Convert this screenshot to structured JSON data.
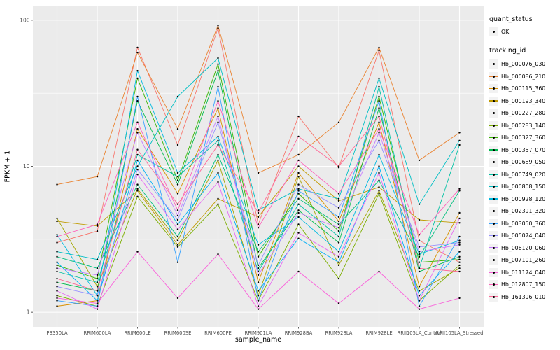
{
  "figure": {
    "background": "#FFFFFF"
  },
  "chart_data": {
    "type": "line",
    "title": "",
    "xlabel": "sample_name",
    "ylabel": "FPKM + 1",
    "y_scale": "log10",
    "ylim": [
      1,
      100
    ],
    "y_ticks": [
      1,
      10,
      100
    ],
    "y_minor_ticks": [
      3.1623,
      31.623
    ],
    "panel_bg": "#EBEBEB",
    "grid_color": "#FFFFFF",
    "point_color": "#000000",
    "key_bg": "#F2F2F2",
    "axis_text_color": "#4D4D4D",
    "legend": {
      "quant_status_title": "quant_status",
      "quant_status_items": [
        {
          "label": "OK",
          "symbol": "point",
          "color": "#000000"
        }
      ],
      "tracking_title": "tracking_id",
      "position": "right"
    },
    "categories": [
      "PB350LA",
      "RRIM600LA",
      "RRIM600LE",
      "RRIM600SE",
      "RRIM600PE",
      "RRIM901LA",
      "RRIM928BA",
      "RRIM928LA",
      "RRIM928LE",
      "RRII105LA_Control",
      "RRII105LA_Stressed"
    ],
    "series": [
      {
        "name": "Hb_000076_030",
        "color": "#F8766D",
        "values": [
          3.0,
          3.6,
          65,
          14,
          88,
          4.0,
          22,
          9.8,
          62,
          3.1,
          2.2
        ]
      },
      {
        "name": "Hb_000086_210",
        "color": "#EA8331",
        "values": [
          7.5,
          8.5,
          60,
          18,
          92,
          9.0,
          12,
          20,
          65,
          11,
          17
        ]
      },
      {
        "name": "Hb_000115_360",
        "color": "#D89000",
        "values": [
          1.1,
          1.2,
          18,
          6.5,
          25,
          1.6,
          9.0,
          4.2,
          20,
          1.5,
          4.8
        ]
      },
      {
        "name": "Hb_000193_340",
        "color": "#C09B00",
        "values": [
          4.2,
          3.9,
          6.8,
          2.9,
          6.0,
          4.5,
          10,
          5.8,
          7.2,
          4.3,
          4.1
        ]
      },
      {
        "name": "Hb_000227_280",
        "color": "#A3A500",
        "values": [
          4.4,
          1.5,
          7.0,
          3.1,
          11,
          1.3,
          8.5,
          2.1,
          6.8,
          1.4,
          2.0
        ]
      },
      {
        "name": "Hb_000283_140",
        "color": "#7CAE00",
        "values": [
          1.3,
          1.1,
          6.2,
          2.8,
          5.5,
          1.2,
          4.0,
          1.7,
          6.5,
          1.2,
          2.1
        ]
      },
      {
        "name": "Hb_000327_360",
        "color": "#39B600",
        "values": [
          2.1,
          1.7,
          40,
          8.0,
          50,
          2.4,
          6.5,
          3.6,
          30,
          2.2,
          2.3
        ]
      },
      {
        "name": "Hb_000357_070",
        "color": "#00BB4E",
        "values": [
          1.6,
          1.4,
          28,
          7.5,
          45,
          2.0,
          5.0,
          3.0,
          25,
          1.9,
          2.4
        ]
      },
      {
        "name": "Hb_000689_050",
        "color": "#00BF7D",
        "values": [
          2.4,
          2.0,
          7.5,
          3.3,
          12,
          2.6,
          6.0,
          4.0,
          8.0,
          2.4,
          6.8
        ]
      },
      {
        "name": "Hb_000749_020",
        "color": "#00C1A3",
        "values": [
          1.9,
          1.6,
          12,
          8.5,
          15,
          1.9,
          5.5,
          3.3,
          35,
          2.0,
          14
        ]
      },
      {
        "name": "Hb_000808_150",
        "color": "#00BFC4",
        "values": [
          2.6,
          2.3,
          10,
          30,
          55,
          5.0,
          7.0,
          6.0,
          40,
          5.5,
          15
        ]
      },
      {
        "name": "Hb_000928_120",
        "color": "#00BAE0",
        "values": [
          3.4,
          1.3,
          45,
          9.0,
          16,
          2.9,
          4.5,
          2.6,
          12,
          2.5,
          3.1
        ]
      },
      {
        "name": "Hb_002391_320",
        "color": "#00B0F6",
        "values": [
          2.2,
          1.2,
          11,
          4.0,
          9.0,
          1.4,
          3.2,
          2.2,
          10,
          1.3,
          2.6
        ]
      },
      {
        "name": "Hb_003050_360",
        "color": "#35A2FF",
        "values": [
          1.2,
          1.1,
          30,
          2.2,
          35,
          1.2,
          6.8,
          4.5,
          28,
          1.1,
          3.3
        ]
      },
      {
        "name": "Hb_005074_040",
        "color": "#9590FF",
        "values": [
          1.5,
          1.3,
          9.5,
          4.3,
          20,
          2.1,
          7.5,
          5.2,
          15,
          2.8,
          3.0
        ]
      },
      {
        "name": "Hb_006120_060",
        "color": "#C77CFF",
        "values": [
          2.0,
          1.8,
          17,
          4.6,
          22,
          1.8,
          4.8,
          3.8,
          17,
          2.6,
          2.9
        ]
      },
      {
        "name": "Hb_007101_260",
        "color": "#E76BF3",
        "values": [
          1.4,
          1.05,
          8.8,
          3.7,
          7.8,
          1.1,
          3.5,
          2.4,
          9.0,
          1.2,
          4.4
        ]
      },
      {
        "name": "Hb_011174_040",
        "color": "#FA62DB",
        "values": [
          1.25,
          1.15,
          2.6,
          1.25,
          2.5,
          1.05,
          1.9,
          1.15,
          1.9,
          1.05,
          1.25
        ]
      },
      {
        "name": "Hb_012807_150",
        "color": "#FF62BC",
        "values": [
          3.3,
          4.0,
          20,
          5.0,
          28,
          3.8,
          11,
          6.5,
          18,
          3.4,
          7.0
        ]
      },
      {
        "name": "Hb_161396_010",
        "color": "#FF6A98",
        "values": [
          1.7,
          1.4,
          13,
          5.5,
          14,
          4.8,
          16,
          10,
          22,
          2.0,
          1.9
        ]
      }
    ]
  }
}
